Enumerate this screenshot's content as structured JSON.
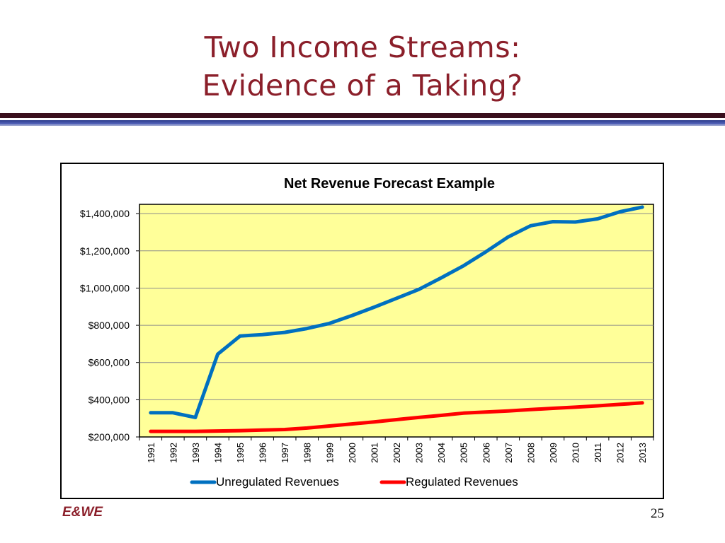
{
  "slide": {
    "title_line1": "Two Income Streams:",
    "title_line2": "Evidence of a Taking?",
    "footer_logo": "E&WE",
    "page_number": "25"
  },
  "colors": {
    "title": "#8b1f2a",
    "plot_background": "#ffff99",
    "unregulated": "#0070c0",
    "regulated": "#ff0000"
  },
  "chart_data": {
    "type": "line",
    "title": "Net Revenue Forecast Example",
    "xlabel": "",
    "ylabel": "",
    "categories": [
      "1991",
      "1992",
      "1993",
      "1994",
      "1995",
      "1996",
      "1997",
      "1998",
      "1999",
      "2000",
      "2001",
      "2002",
      "2003",
      "2004",
      "2005",
      "2006",
      "2007",
      "2008",
      "2009",
      "2010",
      "2011",
      "2012",
      "2013"
    ],
    "y_tick_labels": [
      "$200,000",
      "$400,000",
      "$600,000",
      "$800,000",
      "$1,000,000",
      "$1,200,000",
      "$1,400,000"
    ],
    "ylim": [
      200000,
      1450000
    ],
    "grid": true,
    "legend_position": "bottom",
    "series": [
      {
        "name": "Unregulated Revenues",
        "color": "#0070c0",
        "values": [
          330000,
          330000,
          305000,
          645000,
          742000,
          750000,
          762000,
          783000,
          810000,
          852000,
          897000,
          945000,
          993000,
          1055000,
          1120000,
          1195000,
          1275000,
          1335000,
          1357000,
          1355000,
          1372000,
          1410000,
          1435000
        ]
      },
      {
        "name": "Regulated Revenues",
        "color": "#ff0000",
        "values": [
          230000,
          230000,
          230000,
          232000,
          234000,
          237000,
          240000,
          248000,
          259000,
          270000,
          281000,
          293000,
          305000,
          316000,
          328000,
          334000,
          340000,
          347000,
          354000,
          360000,
          367000,
          375000,
          383000
        ]
      }
    ]
  }
}
